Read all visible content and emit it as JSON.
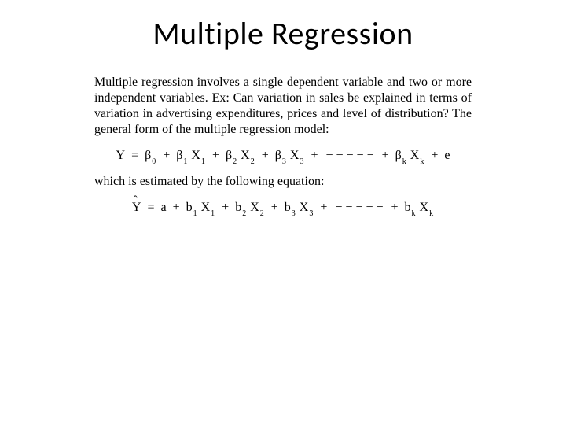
{
  "title": "Multiple Regression",
  "paragraph1": "Multiple regression involves a single dependent variable and two or more independent variables. Ex: Can variation in sales be explained in terms of variation in advertising expenditures, prices and level of distribution? The general form of the multiple regression model:",
  "paragraph2": "which is estimated by the following equation:",
  "eq1": {
    "lhs": "Y",
    "eq": "=",
    "t0a": "β",
    "t0s": "0",
    "plus": "+",
    "t1a": "β",
    "t1s": "1",
    "t1x": "X",
    "t1xs": "1",
    "t2a": "β",
    "t2s": "2",
    "t2x": "X",
    "t2xs": "2",
    "t3a": "β",
    "t3s": "3",
    "t3x": "X",
    "t3xs": "3",
    "dots": "− − − − −",
    "tka": "β",
    "tks": "k",
    "tkx": "X",
    "tkxs": "k",
    "err": "e"
  },
  "eq2": {
    "lhs": "Y",
    "eq": "=",
    "a": "a",
    "plus": "+",
    "t1a": "b",
    "t1s": "1",
    "t1x": "X",
    "t1xs": "1",
    "t2a": "b",
    "t2s": "2",
    "t2x": "X",
    "t2xs": "2",
    "t3a": "b",
    "t3s": "3",
    "t3x": "X",
    "t3xs": "3",
    "dots": "− − − − −",
    "tka": "b",
    "tks": "k",
    "tkx": "X",
    "tkxs": "k"
  },
  "style": {
    "title_fontsize": 40,
    "body_fontsize": 16,
    "eq_fontsize": 16,
    "sub_fontsize": 10,
    "background": "#ffffff",
    "text_color": "#000000",
    "body_font": "Garamond",
    "title_font": "Calibri"
  }
}
